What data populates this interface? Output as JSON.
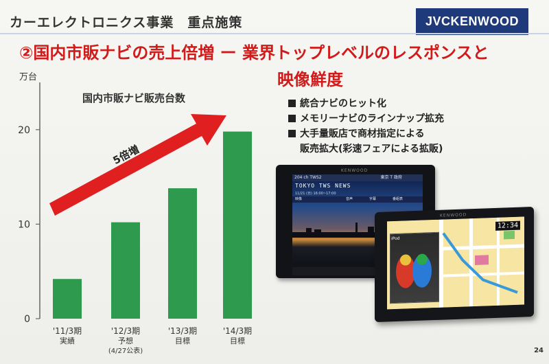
{
  "header": {
    "section_title": "カーエレクトロニクス事業　重点施策",
    "logo_text": "JVCKENWOOD"
  },
  "headline": {
    "line1": "②国内市販ナビの売上倍増 ー 業界トップレベルのレスポンスと",
    "line2": "映像鮮度"
  },
  "bullets": {
    "items": [
      "統合ナビのヒット化",
      "メモリーナビのラインナップ拡充",
      "大手量販店で商材指定による"
    ],
    "continuation": "販売拡大(彩速フェアによる拡販)"
  },
  "chart_data": {
    "type": "bar",
    "title": "国内市販ナビ販売台数",
    "ylabel": "万台",
    "ylim": [
      0,
      25
    ],
    "yticks": [
      0,
      10,
      20
    ],
    "grid": false,
    "categories": [
      "'11/3期",
      "'12/3期",
      "'13/3期",
      "'14/3期"
    ],
    "sublabels": [
      "実績",
      "予想",
      "目標",
      "目標"
    ],
    "notes": [
      "",
      "(4/27公表)",
      "",
      ""
    ],
    "values": [
      4.2,
      10.2,
      13.8,
      19.8
    ],
    "bar_color": "#2e9a4e",
    "annotation": {
      "text": "5倍増",
      "arrow_color": "#e02020"
    }
  },
  "product_screens": {
    "screen1": {
      "brand": "KENWOOD",
      "topbar_left": "204 ch  TWS2",
      "topbar_right": "東京 T 政府",
      "news": "TOKYO TWS NEWS",
      "info": "11/21 (日)  16:00~17:00",
      "subbar": [
        "映像",
        "音声",
        "字幕",
        "番組表"
      ]
    },
    "screen2": {
      "brand": "KENWOOD",
      "time": "12:34",
      "video_label": "iPod"
    }
  },
  "page_number": "24"
}
